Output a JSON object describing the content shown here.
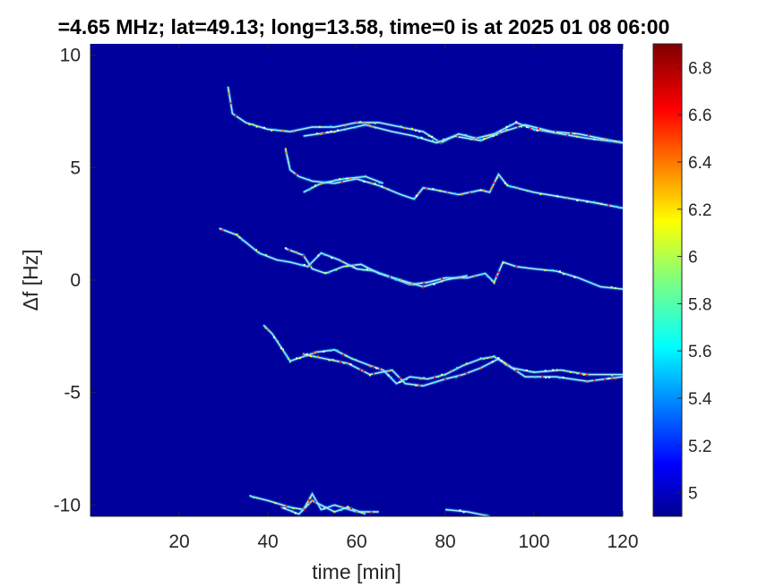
{
  "chart_data": {
    "type": "heatmap",
    "title": "=4.65 MHz;  lat=49.13; long=13.58, time=0 is at 2025 01 08 06:00",
    "xlabel": "time [min]",
    "ylabel": "Δf [Hz]",
    "xlim": [
      0,
      120
    ],
    "ylim": [
      -10.5,
      10.5
    ],
    "xticks": [
      20,
      40,
      60,
      80,
      100,
      120
    ],
    "yticks": [
      10,
      5,
      0,
      -5,
      -10
    ],
    "colormap": "jet",
    "colorbar": {
      "range": [
        4.9,
        6.9
      ],
      "ticks": [
        5,
        5.2,
        5.4,
        5.6,
        5.8,
        6,
        6.2,
        6.4,
        6.6,
        6.8
      ],
      "tick_labels": [
        "5",
        "5.2",
        "5.4",
        "5.6",
        "5.8",
        "6",
        "6.2",
        "6.4",
        "6.6",
        "6.8"
      ]
    },
    "background_color": "#00009c",
    "traces": [
      {
        "name": "",
        "points": [
          [
            31,
            8.6
          ],
          [
            32,
            7.4
          ],
          [
            35,
            7.0
          ],
          [
            40,
            6.7
          ],
          [
            45,
            6.6
          ],
          [
            50,
            6.8
          ],
          [
            55,
            6.8
          ],
          [
            60,
            7.0
          ],
          [
            65,
            7.0
          ],
          [
            70,
            6.8
          ],
          [
            75,
            6.6
          ],
          [
            79,
            6.1
          ],
          [
            83,
            6.5
          ],
          [
            87,
            6.3
          ],
          [
            91,
            6.5
          ],
          [
            96,
            7.0
          ],
          [
            100,
            6.7
          ],
          [
            106,
            6.5
          ],
          [
            112,
            6.3
          ],
          [
            120,
            6.1
          ]
        ]
      },
      {
        "name": "",
        "points": [
          [
            48,
            6.4
          ],
          [
            55,
            6.6
          ],
          [
            62,
            6.9
          ],
          [
            68,
            6.6
          ],
          [
            73,
            6.4
          ],
          [
            78,
            6.1
          ],
          [
            82,
            6.4
          ],
          [
            88,
            6.2
          ],
          [
            93,
            6.6
          ],
          [
            98,
            6.9
          ],
          [
            104,
            6.6
          ],
          [
            110,
            6.5
          ],
          [
            120,
            6.1
          ]
        ]
      },
      {
        "name": "",
        "points": [
          [
            44,
            5.8
          ],
          [
            45,
            4.9
          ],
          [
            47,
            4.6
          ],
          [
            50,
            4.4
          ],
          [
            55,
            4.3
          ],
          [
            60,
            4.5
          ],
          [
            65,
            4.2
          ],
          [
            70,
            3.8
          ],
          [
            73,
            3.6
          ],
          [
            75,
            4.1
          ],
          [
            78,
            4.0
          ],
          [
            83,
            3.8
          ],
          [
            88,
            4.0
          ],
          [
            90,
            3.9
          ],
          [
            92,
            4.7
          ],
          [
            94,
            4.2
          ],
          [
            100,
            3.9
          ],
          [
            106,
            3.7
          ],
          [
            112,
            3.5
          ],
          [
            120,
            3.2
          ]
        ]
      },
      {
        "name": "",
        "points": [
          [
            48,
            3.9
          ],
          [
            52,
            4.3
          ],
          [
            57,
            4.5
          ],
          [
            62,
            4.6
          ],
          [
            66,
            4.3
          ]
        ]
      },
      {
        "name": "",
        "points": [
          [
            29,
            2.3
          ],
          [
            33,
            2.0
          ],
          [
            38,
            1.2
          ],
          [
            42,
            0.9
          ],
          [
            45,
            0.8
          ],
          [
            49,
            0.6
          ],
          [
            52,
            1.2
          ],
          [
            56,
            0.9
          ],
          [
            60,
            0.5
          ],
          [
            64,
            0.4
          ],
          [
            68,
            0.1
          ],
          [
            72,
            -0.2
          ],
          [
            76,
            -0.1
          ],
          [
            80,
            0.1
          ],
          [
            85,
            0.1
          ],
          [
            89,
            0.3
          ],
          [
            91,
            -0.1
          ],
          [
            93,
            0.8
          ],
          [
            96,
            0.6
          ],
          [
            100,
            0.5
          ],
          [
            105,
            0.4
          ],
          [
            110,
            0.1
          ],
          [
            115,
            -0.3
          ],
          [
            120,
            -0.4
          ]
        ]
      },
      {
        "name": "",
        "points": [
          [
            44,
            1.4
          ],
          [
            48,
            1.1
          ],
          [
            50,
            0.5
          ],
          [
            53,
            0.3
          ],
          [
            57,
            0.6
          ],
          [
            61,
            0.7
          ],
          [
            65,
            0.3
          ],
          [
            70,
            0.0
          ],
          [
            75,
            -0.3
          ],
          [
            80,
            0.0
          ],
          [
            85,
            0.2
          ]
        ]
      },
      {
        "name": "",
        "points": [
          [
            39,
            -2.0
          ],
          [
            41,
            -2.4
          ],
          [
            43,
            -3.0
          ],
          [
            45,
            -3.6
          ],
          [
            48,
            -3.4
          ],
          [
            51,
            -3.2
          ],
          [
            55,
            -3.1
          ],
          [
            59,
            -3.5
          ],
          [
            63,
            -3.8
          ],
          [
            66,
            -4.0
          ],
          [
            69,
            -4.6
          ],
          [
            72,
            -4.3
          ],
          [
            76,
            -4.4
          ],
          [
            80,
            -4.2
          ],
          [
            84,
            -3.8
          ],
          [
            88,
            -3.5
          ],
          [
            91,
            -3.4
          ],
          [
            95,
            -3.9
          ],
          [
            100,
            -4.1
          ],
          [
            106,
            -4.0
          ],
          [
            112,
            -4.2
          ],
          [
            120,
            -4.2
          ]
        ]
      },
      {
        "name": "",
        "points": [
          [
            48,
            -3.3
          ],
          [
            53,
            -3.5
          ],
          [
            58,
            -3.7
          ],
          [
            63,
            -4.2
          ],
          [
            68,
            -4.0
          ],
          [
            71,
            -4.6
          ],
          [
            75,
            -4.7
          ],
          [
            80,
            -4.4
          ],
          [
            84,
            -4.2
          ],
          [
            88,
            -3.9
          ],
          [
            92,
            -3.5
          ],
          [
            98,
            -4.3
          ],
          [
            105,
            -4.3
          ],
          [
            112,
            -4.5
          ],
          [
            120,
            -4.3
          ]
        ]
      },
      {
        "name": "",
        "points": [
          [
            36,
            -9.6
          ],
          [
            40,
            -9.8
          ],
          [
            45,
            -10.1
          ],
          [
            48,
            -10.2
          ],
          [
            50,
            -9.5
          ],
          [
            52,
            -10.2
          ],
          [
            55,
            -10.0
          ],
          [
            60,
            -10.3
          ],
          [
            65,
            -10.3
          ]
        ]
      },
      {
        "name": "",
        "points": [
          [
            43,
            -10.1
          ],
          [
            47,
            -10.4
          ],
          [
            50,
            -9.8
          ],
          [
            55,
            -10.3
          ],
          [
            58,
            -10.1
          ],
          [
            62,
            -10.4
          ]
        ]
      },
      {
        "name": "",
        "points": [
          [
            80,
            -10.2
          ],
          [
            85,
            -10.3
          ],
          [
            90,
            -10.5
          ]
        ]
      }
    ]
  }
}
